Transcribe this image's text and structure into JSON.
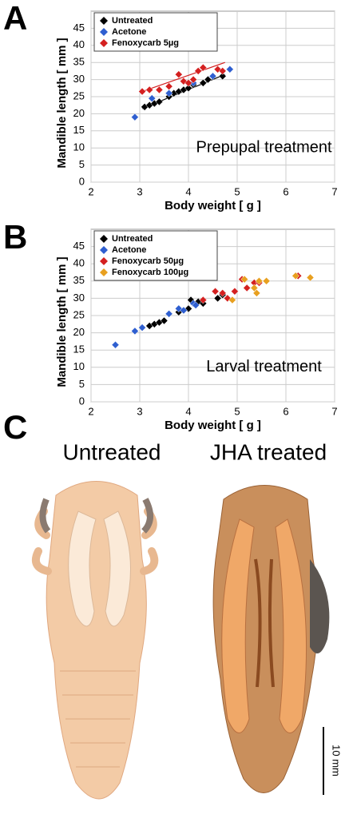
{
  "panel_labels": [
    "A",
    "B",
    "C"
  ],
  "chart_data": [
    {
      "type": "scatter",
      "annotation": "Prepupal treatment",
      "xlabel": "Body weight [ g ]",
      "ylabel": "Mandible length [ mm ]",
      "xlim": [
        2,
        7
      ],
      "ylim": [
        0,
        50
      ],
      "xticks": [
        2,
        3,
        4,
        5,
        6,
        7
      ],
      "yticks": [
        0,
        5,
        10,
        15,
        20,
        25,
        30,
        35,
        40,
        45
      ],
      "grid": true,
      "legend": "upper-left",
      "series": [
        {
          "name": "Untreated",
          "color": "#000000",
          "x": [
            3.1,
            3.2,
            3.3,
            3.4,
            3.6,
            3.7,
            3.8,
            3.9,
            4.0,
            4.1,
            4.3,
            4.4,
            4.7
          ],
          "values": [
            22,
            22.5,
            23,
            23.5,
            25,
            26,
            26.5,
            27,
            27.5,
            28.5,
            29,
            30,
            31
          ]
        },
        {
          "name": "Acetone",
          "color": "#2f5fd0",
          "x": [
            2.9,
            3.25,
            3.6,
            4.1,
            4.5,
            4.85
          ],
          "values": [
            19,
            24.5,
            26,
            29,
            31,
            33
          ]
        },
        {
          "name": "Fenoxycarb 5µg",
          "color": "#d42020",
          "x": [
            3.05,
            3.2,
            3.4,
            3.6,
            3.8,
            3.9,
            4.0,
            4.1,
            4.2,
            4.3,
            4.6,
            4.7
          ],
          "values": [
            26.5,
            27,
            27,
            28,
            31.5,
            29.5,
            29,
            30,
            32.5,
            33.5,
            33,
            32.5
          ]
        }
      ],
      "fits": [
        {
          "color": "#000000",
          "x": [
            3.05,
            4.75
          ],
          "values": [
            21.5,
            31.5
          ]
        },
        {
          "color": "#d42020",
          "x": [
            3.05,
            4.75
          ],
          "values": [
            26.5,
            35
          ]
        }
      ]
    },
    {
      "type": "scatter",
      "annotation": "Larval treatment",
      "xlabel": "Body weight [ g ]",
      "ylabel": "Mandible length [ mm ]",
      "xlim": [
        2,
        7
      ],
      "ylim": [
        0,
        50
      ],
      "xticks": [
        2,
        3,
        4,
        5,
        6,
        7
      ],
      "yticks": [
        0,
        5,
        10,
        15,
        20,
        25,
        30,
        35,
        40,
        45
      ],
      "grid": true,
      "legend": "upper-left",
      "series": [
        {
          "name": "Untreated",
          "color": "#000000",
          "x": [
            3.2,
            3.3,
            3.4,
            3.5,
            3.8,
            3.9,
            4.0,
            4.05,
            4.2,
            4.3,
            4.6,
            4.7
          ],
          "values": [
            22,
            22.5,
            23,
            23.5,
            26,
            26.5,
            27,
            29.5,
            29,
            28.5,
            30,
            31
          ]
        },
        {
          "name": "Acetone",
          "color": "#2f5fd0",
          "x": [
            2.5,
            2.9,
            3.05,
            3.6,
            3.8,
            3.9,
            4.1,
            4.15
          ],
          "values": [
            16.5,
            20.5,
            21.5,
            25.5,
            27,
            26.5,
            28.5,
            28
          ]
        },
        {
          "name": "Fenoxycarb 50µg",
          "color": "#d42020",
          "x": [
            4.3,
            4.55,
            4.7,
            4.8,
            4.95,
            5.1,
            5.2,
            5.35,
            5.45,
            6.25
          ],
          "values": [
            29.5,
            32,
            31.5,
            30,
            32,
            35.5,
            33,
            34.5,
            34.5,
            36.5
          ]
        },
        {
          "name": "Fenoxycarb 100µg",
          "color": "#e8a020",
          "x": [
            4.9,
            5.15,
            5.35,
            5.4,
            5.45,
            5.6,
            6.2,
            6.5
          ],
          "values": [
            29.5,
            35.5,
            33,
            31.5,
            35,
            35,
            36.5,
            36
          ]
        }
      ]
    }
  ],
  "photos": {
    "labels": [
      "Untreated",
      "JHA treated"
    ],
    "scale_bar": "10 mm"
  }
}
